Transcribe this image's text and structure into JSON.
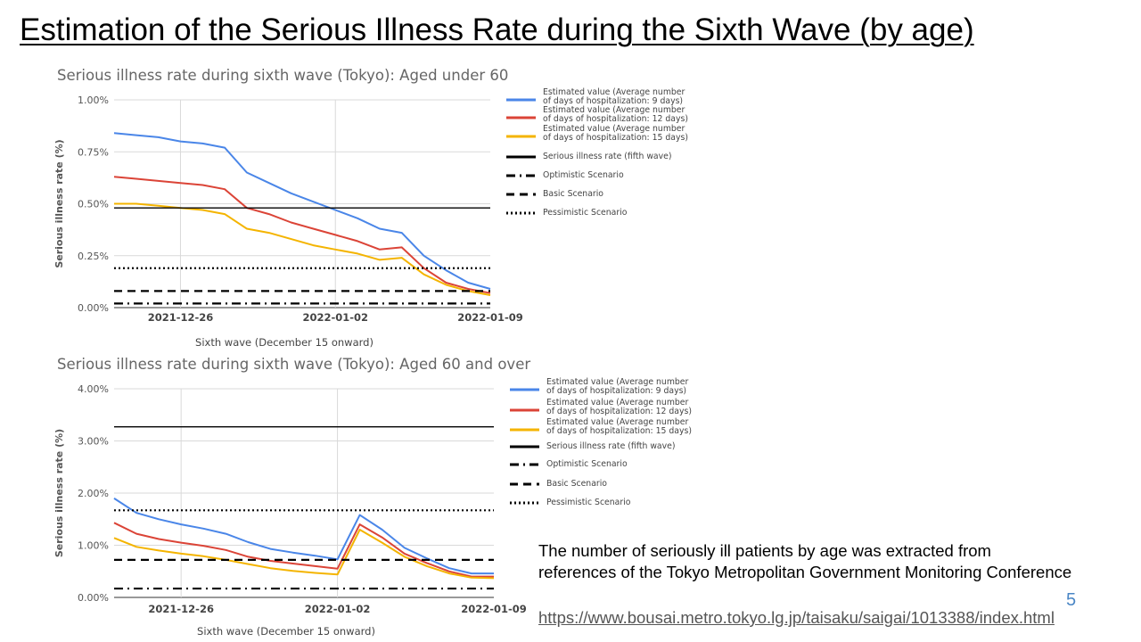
{
  "slide": {
    "title": "Estimation of the Serious Illness Rate during the Sixth Wave (by age)",
    "note": "The number of seriously ill patients by age was extracted from references of the Tokyo Metropolitan Government Monitoring Conference",
    "link": "https://www.bousai.metro.tokyo.lg.jp/taisaku/saigai/1013388/index.html",
    "page_number": "5"
  },
  "chart_data": [
    {
      "type": "line",
      "title": "Serious illness rate during sixth wave (Tokyo): Aged under 60",
      "xlabel": "Sixth wave (December 15 onward)",
      "ylabel": "Serious illness rate (%)",
      "ylim": [
        0,
        1.0
      ],
      "yticks": [
        "1.00%",
        "0.75%",
        "0.50%",
        "0.25%",
        "0.00%"
      ],
      "xlim": [
        "2021-12-23",
        "2022-01-09"
      ],
      "xticks": [
        "2021-12-26",
        "2022-01-02",
        "2022-01-09"
      ],
      "grid": true,
      "legend_position": "right",
      "series": [
        {
          "name": "Estimated value (Average number of days of hospitalization: 9 days)",
          "color": "#4a86e8",
          "style": "solid",
          "x": [
            "2021-12-23",
            "2021-12-24",
            "2021-12-25",
            "2021-12-26",
            "2021-12-27",
            "2021-12-28",
            "2021-12-29",
            "2021-12-30",
            "2021-12-31",
            "2022-01-01",
            "2022-01-02",
            "2022-01-03",
            "2022-01-04",
            "2022-01-05",
            "2022-01-06",
            "2022-01-07",
            "2022-01-08",
            "2022-01-09"
          ],
          "values": [
            0.84,
            0.83,
            0.82,
            0.8,
            0.79,
            0.77,
            0.65,
            0.6,
            0.55,
            0.51,
            0.47,
            0.43,
            0.38,
            0.36,
            0.25,
            0.18,
            0.12,
            0.09
          ]
        },
        {
          "name": "Estimated value (Average number of days of hospitalization: 12 days)",
          "color": "#db4437",
          "style": "solid",
          "x": [
            "2021-12-23",
            "2021-12-24",
            "2021-12-25",
            "2021-12-26",
            "2021-12-27",
            "2021-12-28",
            "2021-12-29",
            "2021-12-30",
            "2021-12-31",
            "2022-01-01",
            "2022-01-02",
            "2022-01-03",
            "2022-01-04",
            "2022-01-05",
            "2022-01-06",
            "2022-01-07",
            "2022-01-08",
            "2022-01-09"
          ],
          "values": [
            0.63,
            0.62,
            0.61,
            0.6,
            0.59,
            0.57,
            0.48,
            0.45,
            0.41,
            0.38,
            0.35,
            0.32,
            0.28,
            0.29,
            0.19,
            0.12,
            0.09,
            0.07
          ]
        },
        {
          "name": "Estimated value (Average number of days of hospitalization: 15 days)",
          "color": "#f4b400",
          "style": "solid",
          "x": [
            "2021-12-23",
            "2021-12-24",
            "2021-12-25",
            "2021-12-26",
            "2021-12-27",
            "2021-12-28",
            "2021-12-29",
            "2021-12-30",
            "2021-12-31",
            "2022-01-01",
            "2022-01-02",
            "2022-01-03",
            "2022-01-04",
            "2022-01-05",
            "2022-01-06",
            "2022-01-07",
            "2022-01-08",
            "2022-01-09"
          ],
          "values": [
            0.5,
            0.5,
            0.49,
            0.48,
            0.47,
            0.45,
            0.38,
            0.36,
            0.33,
            0.3,
            0.28,
            0.26,
            0.23,
            0.24,
            0.16,
            0.11,
            0.08,
            0.06
          ]
        },
        {
          "name": "Serious illness rate (fifth wave)",
          "color": "#000000",
          "style": "solid",
          "constant": 0.48
        },
        {
          "name": "Optimistic Scenario",
          "color": "#000000",
          "style": "dashdot",
          "constant": 0.02
        },
        {
          "name": "Basic Scenario",
          "color": "#000000",
          "style": "dashed",
          "constant": 0.08
        },
        {
          "name": "Pessimistic Scenario",
          "color": "#000000",
          "style": "dotted",
          "constant": 0.19
        }
      ]
    },
    {
      "type": "line",
      "title": "Serious illness rate during sixth wave (Tokyo): Aged 60 and over",
      "xlabel": "Sixth wave (December 15 onward)",
      "ylabel": "Serious illness rate (%)",
      "ylim": [
        0,
        4.0
      ],
      "yticks": [
        "4.00%",
        "3.00%",
        "2.00%",
        "1.00%",
        "0.00%"
      ],
      "xlim": [
        "2021-12-23",
        "2022-01-09"
      ],
      "xticks": [
        "2021-12-26",
        "2022-01-02",
        "2022-01-09"
      ],
      "grid": true,
      "legend_position": "right",
      "series": [
        {
          "name": "Estimated value (Average number of days of hospitalization: 9 days)",
          "color": "#4a86e8",
          "style": "solid",
          "x": [
            "2021-12-23",
            "2021-12-24",
            "2021-12-25",
            "2021-12-26",
            "2021-12-27",
            "2021-12-28",
            "2021-12-29",
            "2021-12-30",
            "2021-12-31",
            "2022-01-01",
            "2022-01-02",
            "2022-01-03",
            "2022-01-04",
            "2022-01-05",
            "2022-01-06",
            "2022-01-07",
            "2022-01-08",
            "2022-01-09"
          ],
          "values": [
            1.9,
            1.62,
            1.5,
            1.4,
            1.32,
            1.22,
            1.06,
            0.93,
            0.86,
            0.8,
            0.73,
            1.58,
            1.3,
            0.95,
            0.75,
            0.56,
            0.46,
            0.46
          ]
        },
        {
          "name": "Estimated value (Average number of days of hospitalization: 12 days)",
          "color": "#db4437",
          "style": "solid",
          "x": [
            "2021-12-23",
            "2021-12-24",
            "2021-12-25",
            "2021-12-26",
            "2021-12-27",
            "2021-12-28",
            "2021-12-29",
            "2021-12-30",
            "2021-12-31",
            "2022-01-01",
            "2022-01-02",
            "2022-01-03",
            "2022-01-04",
            "2022-01-05",
            "2022-01-06",
            "2022-01-07",
            "2022-01-08",
            "2022-01-09"
          ],
          "values": [
            1.43,
            1.22,
            1.12,
            1.05,
            0.99,
            0.91,
            0.78,
            0.7,
            0.65,
            0.6,
            0.55,
            1.4,
            1.15,
            0.84,
            0.66,
            0.5,
            0.4,
            0.4
          ]
        },
        {
          "name": "Estimated value (Average number of days of hospitalization: 15 days)",
          "color": "#f4b400",
          "style": "solid",
          "x": [
            "2021-12-23",
            "2021-12-24",
            "2021-12-25",
            "2021-12-26",
            "2021-12-27",
            "2021-12-28",
            "2021-12-29",
            "2021-12-30",
            "2021-12-31",
            "2022-01-01",
            "2022-01-02",
            "2022-01-03",
            "2022-01-04",
            "2022-01-05",
            "2022-01-06",
            "2022-01-07",
            "2022-01-08",
            "2022-01-09"
          ],
          "values": [
            1.14,
            0.97,
            0.9,
            0.84,
            0.79,
            0.72,
            0.64,
            0.56,
            0.51,
            0.47,
            0.44,
            1.3,
            1.05,
            0.78,
            0.6,
            0.46,
            0.38,
            0.37
          ]
        },
        {
          "name": "Serious illness rate (fifth wave)",
          "color": "#000000",
          "style": "solid",
          "constant": 3.27
        },
        {
          "name": "Optimistic Scenario",
          "color": "#000000",
          "style": "dashdot",
          "constant": 0.17
        },
        {
          "name": "Basic Scenario",
          "color": "#000000",
          "style": "dashed",
          "constant": 0.72
        },
        {
          "name": "Pessimistic Scenario",
          "color": "#000000",
          "style": "dotted",
          "constant": 1.67
        }
      ]
    }
  ]
}
